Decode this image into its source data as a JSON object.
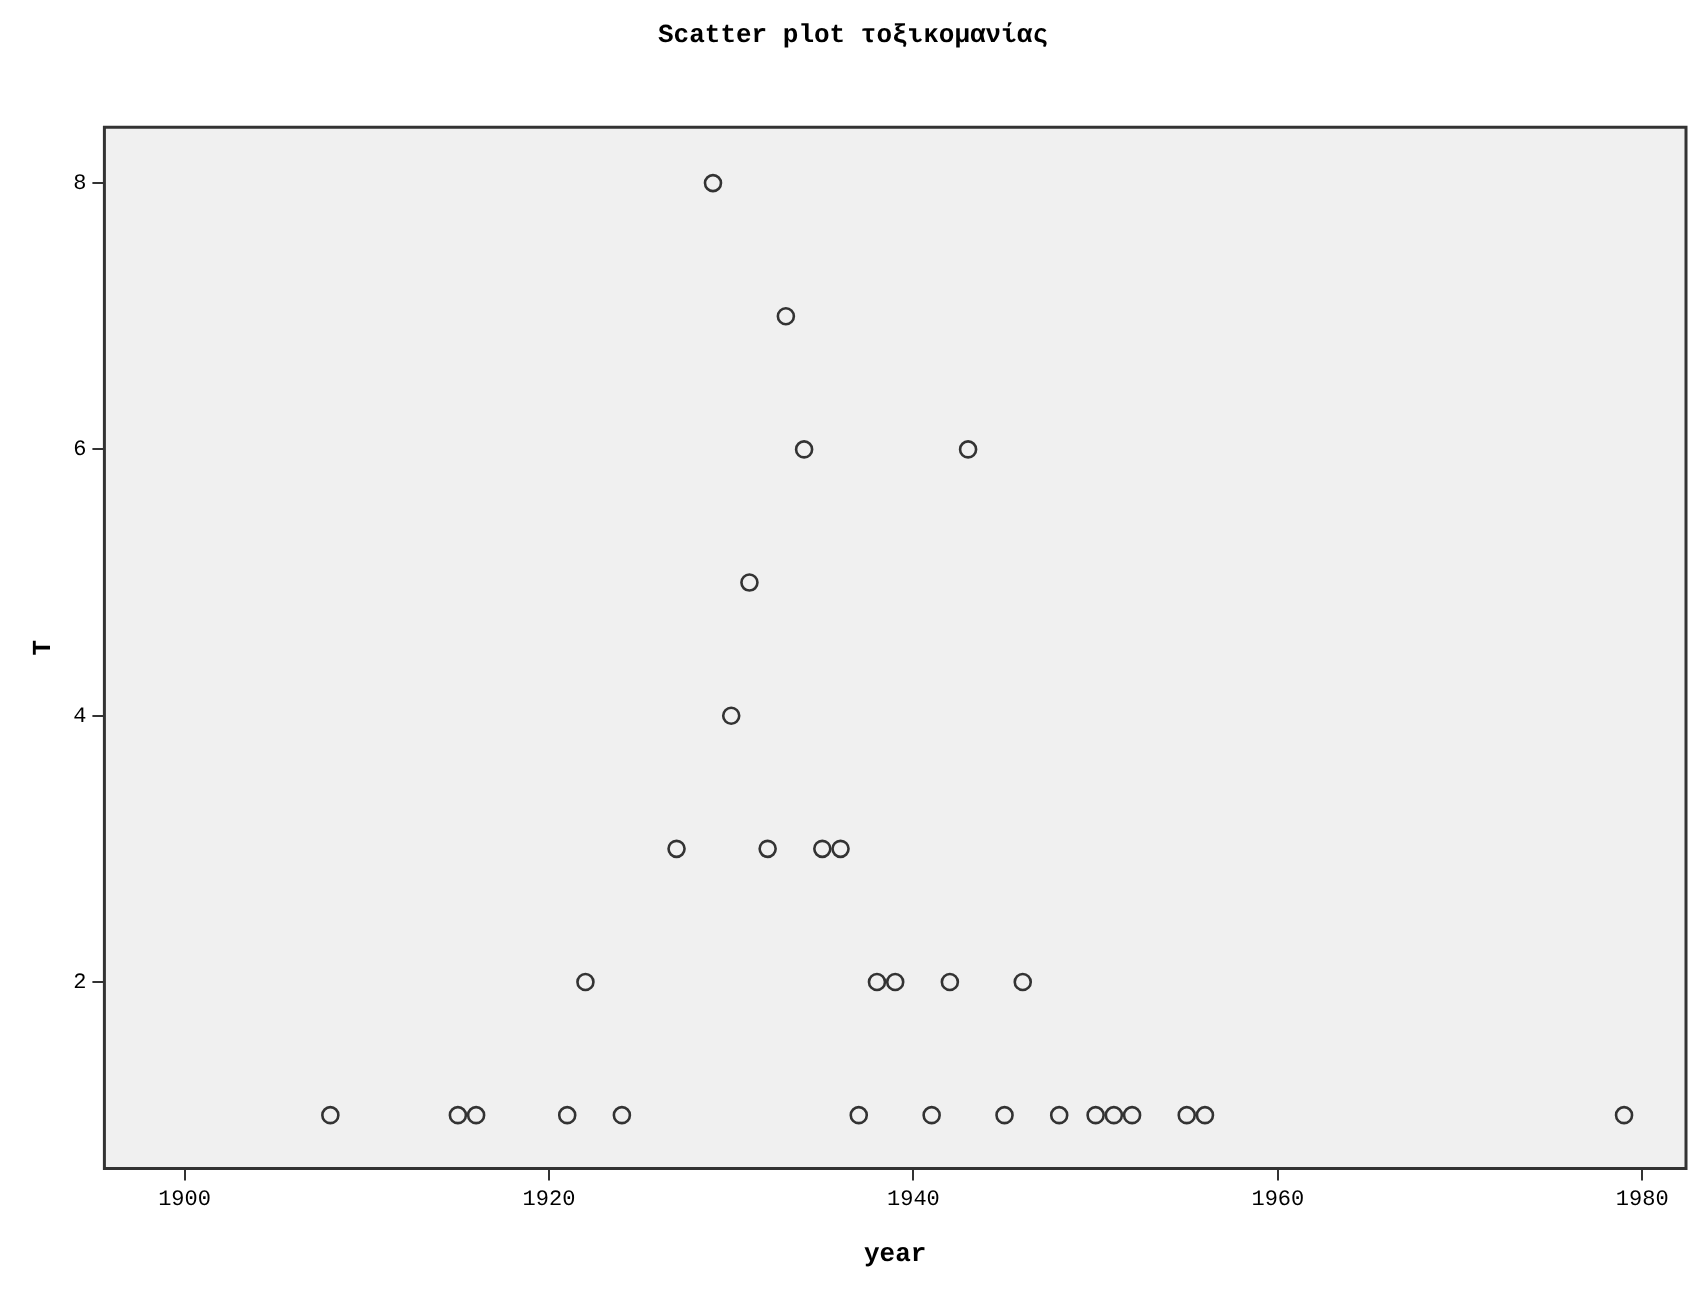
{
  "chart_data": {
    "type": "scatter",
    "title": "Scatter plot τοξικομανίας",
    "xlabel": "year",
    "ylabel": "T",
    "x": [
      1908,
      1915,
      1916,
      1921,
      1924,
      1937,
      1941,
      1945,
      1948,
      1950,
      1951,
      1952,
      1955,
      1956,
      1979,
      1922,
      1938,
      1939,
      1942,
      1946,
      1927,
      1932,
      1935,
      1936,
      1930,
      1931,
      1934,
      1943,
      1933,
      1929
    ],
    "values": [
      1,
      1,
      1,
      1,
      1,
      1,
      1,
      1,
      1,
      1,
      1,
      1,
      1,
      1,
      1,
      2,
      2,
      2,
      2,
      2,
      3,
      3,
      3,
      3,
      4,
      5,
      6,
      6,
      7,
      8
    ],
    "color": "#333333",
    "marker": "circle",
    "xlim": [
      1895.6,
      1982.4
    ],
    "xticks": [
      1900,
      1920,
      1940,
      1960,
      1980
    ],
    "ylim": [
      0.6,
      8.42
    ],
    "yticks": [
      2,
      4,
      6,
      8
    ]
  }
}
